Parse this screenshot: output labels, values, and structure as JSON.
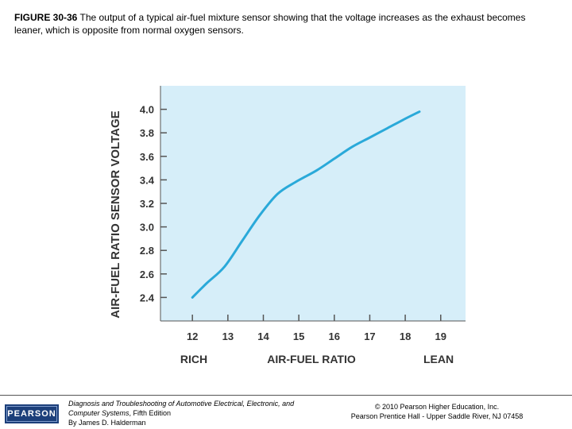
{
  "caption": {
    "figure_label": "FIGURE 30-36",
    "text": "The output of a typical air-fuel mixture sensor showing that the voltage increases as the exhaust becomes leaner, which is opposite from normal oxygen sensors."
  },
  "chart_data": {
    "type": "line",
    "title": "",
    "xlabel": "AIR-FUEL RATIO",
    "ylabel": "AIR-FUEL RATIO SENSOR VOLTAGE",
    "x_left_label": "RICH",
    "x_right_label": "LEAN",
    "xlim": [
      11.1,
      19.7
    ],
    "ylim": [
      2.2,
      4.2
    ],
    "xticks": [
      12,
      13,
      14,
      15,
      16,
      17,
      18,
      19
    ],
    "yticks": [
      "2.4",
      "2.6",
      "2.8",
      "3.0",
      "3.2",
      "3.4",
      "3.6",
      "3.8",
      "4.0"
    ],
    "grid": false,
    "legend": "none",
    "background_color": "#d6eef9",
    "line_color": "#2aa9d9",
    "series": [
      {
        "x": [
          12.0,
          12.4,
          12.9,
          13.4,
          13.9,
          14.4,
          14.9,
          15.5,
          16.0,
          16.5,
          17.0,
          17.5,
          18.0,
          18.4
        ],
        "y": [
          2.4,
          2.52,
          2.66,
          2.88,
          3.1,
          3.28,
          3.38,
          3.48,
          3.58,
          3.68,
          3.76,
          3.84,
          3.92,
          3.98
        ]
      }
    ]
  },
  "footer": {
    "logo": "PEARSON",
    "book_title": "Diagnosis and Troubleshooting of Automotive Electrical, Electronic, and Computer Systems",
    "book_edition": ", Fifth Edition",
    "author": "By James D. Halderman",
    "copyright": "© 2010 Pearson Higher Education, Inc.",
    "publisher": "Pearson Prentice Hall - Upper Saddle River, NJ 07458"
  }
}
